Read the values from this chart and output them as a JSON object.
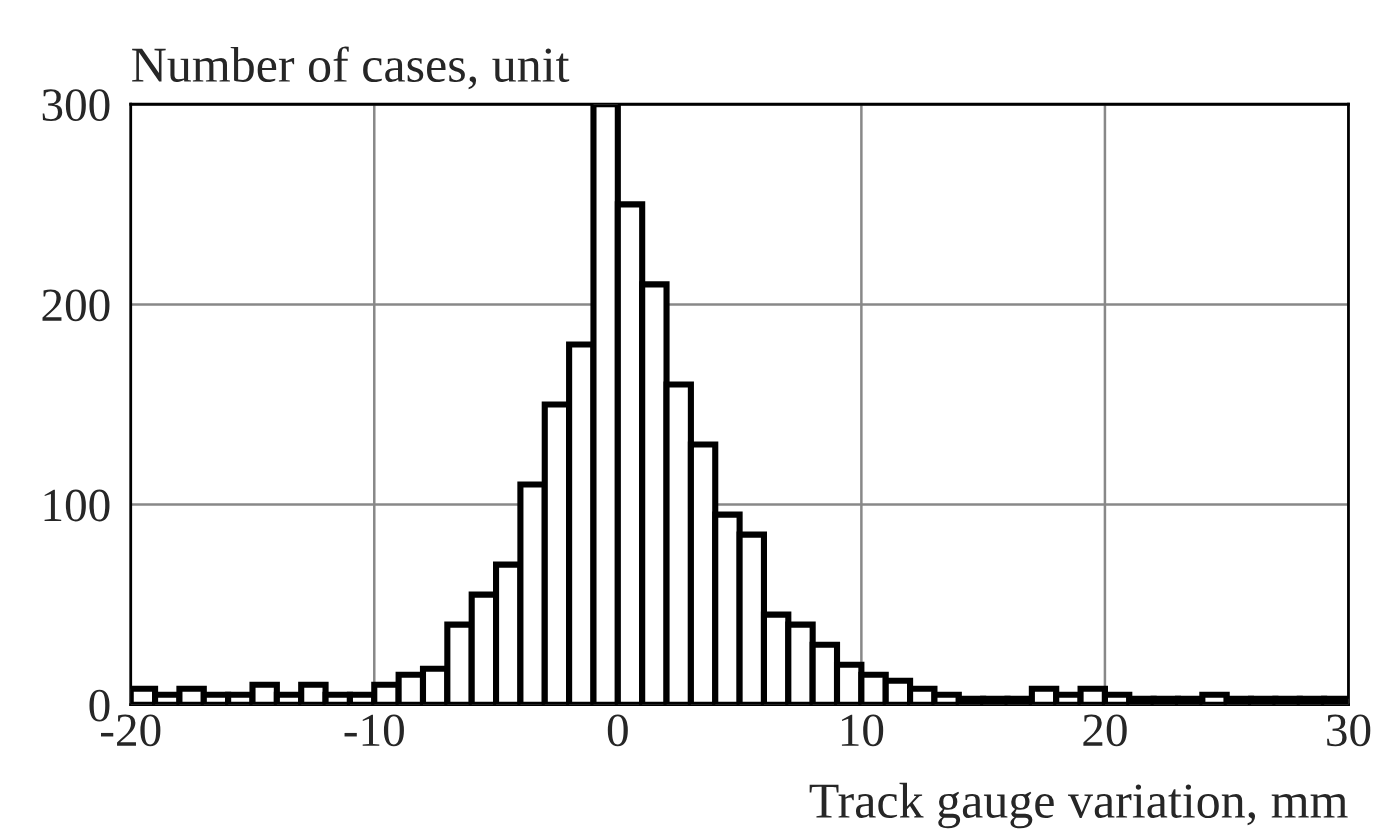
{
  "chart_data": {
    "type": "histogram",
    "xlabel": "Track gauge variation, mm",
    "ylabel": "Number of cases, unit",
    "bins": [
      -20,
      -19,
      -18,
      -17,
      -16,
      -15,
      -14,
      -13,
      -12,
      -11,
      -10,
      -9,
      -8,
      -7,
      -6,
      -5,
      -4,
      -3,
      -2,
      -1,
      0,
      1,
      2,
      3,
      4,
      5,
      6,
      7,
      8,
      9,
      10,
      11,
      12,
      13,
      14,
      15,
      16,
      17,
      18,
      19,
      20,
      21,
      22,
      23,
      24,
      25,
      26,
      27,
      28,
      29,
      30
    ],
    "values": [
      8,
      5,
      8,
      5,
      5,
      10,
      5,
      10,
      5,
      5,
      10,
      15,
      18,
      40,
      55,
      70,
      110,
      150,
      180,
      300,
      250,
      210,
      160,
      130,
      95,
      85,
      45,
      40,
      30,
      20,
      15,
      12,
      8,
      5,
      3,
      3,
      3,
      8,
      5,
      8,
      5,
      3,
      3,
      3,
      5,
      3,
      3,
      3,
      3,
      3
    ],
    "color": "#ffffff",
    "xlim": [
      -20,
      30
    ],
    "ylim": [
      0,
      300
    ],
    "xticks": [
      -20,
      -10,
      0,
      10,
      20,
      30
    ],
    "yticks": [
      0,
      100,
      200,
      300
    ],
    "grid": true
  }
}
